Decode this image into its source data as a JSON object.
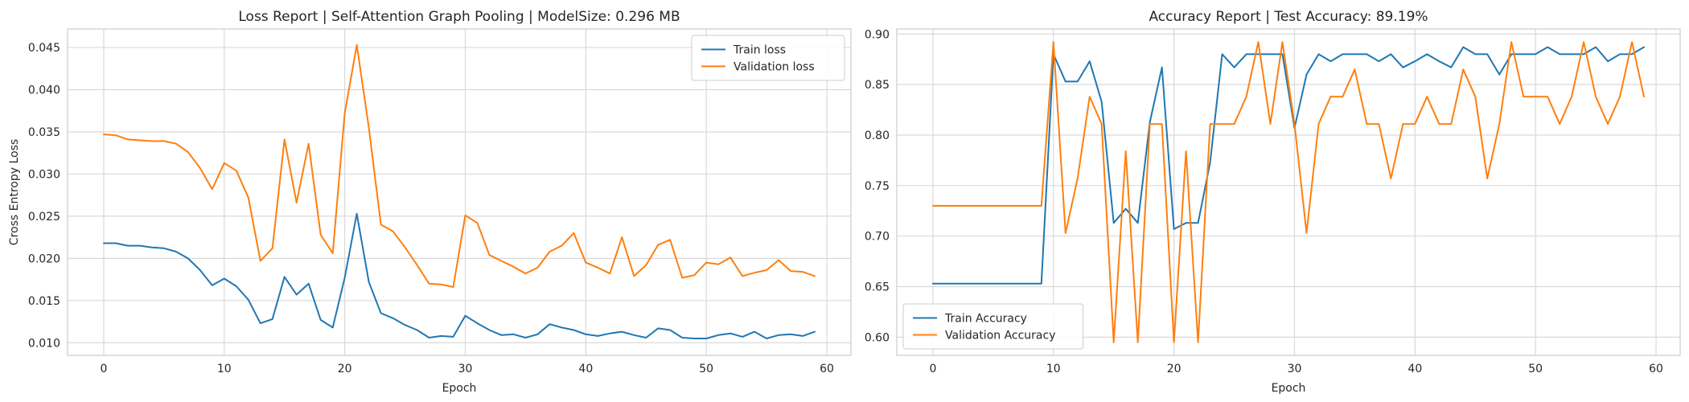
{
  "chart_data": [
    {
      "type": "line",
      "title": "Loss Report | Self-Attention Graph Pooling | ModelSize: 0.296 MB",
      "xlabel": "Epoch",
      "ylabel": "Cross Entropy Loss",
      "xlim": [
        -3,
        62
      ],
      "ylim": [
        0.0085,
        0.0472
      ],
      "xticks": [
        0,
        10,
        20,
        30,
        40,
        50,
        60
      ],
      "xtick_labels": [
        "0",
        "10",
        "20",
        "30",
        "40",
        "50",
        "60"
      ],
      "yticks": [
        0.01,
        0.015,
        0.02,
        0.025,
        0.03,
        0.035,
        0.04,
        0.045
      ],
      "ytick_labels": [
        "0.010",
        "0.015",
        "0.020",
        "0.025",
        "0.030",
        "0.035",
        "0.040",
        "0.045"
      ],
      "grid": true,
      "legend_position": "top-right",
      "x": [
        0,
        1,
        2,
        3,
        4,
        5,
        6,
        7,
        8,
        9,
        10,
        11,
        12,
        13,
        14,
        15,
        16,
        17,
        18,
        19,
        20,
        21,
        22,
        23,
        24,
        25,
        26,
        27,
        28,
        29,
        30,
        31,
        32,
        33,
        34,
        35,
        36,
        37,
        38,
        39,
        40,
        41,
        42,
        43,
        44,
        45,
        46,
        47,
        48,
        49,
        50,
        51,
        52,
        53,
        54,
        55,
        56,
        57,
        58,
        59
      ],
      "series": [
        {
          "name": "Train loss",
          "color": "#1f77b4",
          "values": [
            0.0218,
            0.0218,
            0.0215,
            0.0215,
            0.0213,
            0.0212,
            0.0208,
            0.02,
            0.0186,
            0.0168,
            0.0176,
            0.0167,
            0.0151,
            0.0123,
            0.0128,
            0.0178,
            0.0157,
            0.017,
            0.0127,
            0.0118,
            0.0177,
            0.0253,
            0.0172,
            0.0135,
            0.0129,
            0.0121,
            0.0115,
            0.0106,
            0.0108,
            0.0107,
            0.0132,
            0.0123,
            0.0115,
            0.0109,
            0.011,
            0.0106,
            0.011,
            0.0122,
            0.0118,
            0.0115,
            0.011,
            0.0108,
            0.0111,
            0.0113,
            0.0109,
            0.0106,
            0.0117,
            0.0115,
            0.0106,
            0.0105,
            0.0105,
            0.0109,
            0.0111,
            0.0107,
            0.0113,
            0.0105,
            0.0109,
            0.011,
            0.0108,
            0.0113
          ]
        },
        {
          "name": "Validation loss",
          "color": "#ff7f0e",
          "values": [
            0.0347,
            0.0346,
            0.0341,
            0.034,
            0.0339,
            0.0339,
            0.0336,
            0.0326,
            0.0307,
            0.0282,
            0.0313,
            0.0304,
            0.0272,
            0.0197,
            0.0212,
            0.0341,
            0.0266,
            0.0336,
            0.0228,
            0.0206,
            0.0372,
            0.0453,
            0.0355,
            0.024,
            0.0232,
            0.0213,
            0.0192,
            0.017,
            0.0169,
            0.0166,
            0.0251,
            0.0242,
            0.0204,
            0.0197,
            0.019,
            0.0182,
            0.0189,
            0.0208,
            0.0215,
            0.023,
            0.0195,
            0.0189,
            0.0182,
            0.0225,
            0.0179,
            0.0192,
            0.0216,
            0.0222,
            0.0177,
            0.018,
            0.0195,
            0.0193,
            0.0201,
            0.0179,
            0.0183,
            0.0186,
            0.0198,
            0.0185,
            0.0184,
            0.0179
          ]
        }
      ]
    },
    {
      "type": "line",
      "title": "Accuracy Report | Test Accuracy: 89.19%",
      "xlabel": "Epoch",
      "ylabel": "",
      "xlim": [
        -3,
        62
      ],
      "ylim": [
        0.582,
        0.905
      ],
      "xticks": [
        0,
        10,
        20,
        30,
        40,
        50,
        60
      ],
      "xtick_labels": [
        "0",
        "10",
        "20",
        "30",
        "40",
        "50",
        "60"
      ],
      "yticks": [
        0.6,
        0.65,
        0.7,
        0.75,
        0.8,
        0.85,
        0.9
      ],
      "ytick_labels": [
        "0.60",
        "0.65",
        "0.70",
        "0.75",
        "0.80",
        "0.85",
        "0.90"
      ],
      "grid": true,
      "legend_position": "bottom-left",
      "x": [
        0,
        1,
        2,
        3,
        4,
        5,
        6,
        7,
        8,
        9,
        10,
        11,
        12,
        13,
        14,
        15,
        16,
        17,
        18,
        19,
        20,
        21,
        22,
        23,
        24,
        25,
        26,
        27,
        28,
        29,
        30,
        31,
        32,
        33,
        34,
        35,
        36,
        37,
        38,
        39,
        40,
        41,
        42,
        43,
        44,
        45,
        46,
        47,
        48,
        49,
        50,
        51,
        52,
        53,
        54,
        55,
        56,
        57,
        58,
        59
      ],
      "series": [
        {
          "name": "Train Accuracy",
          "color": "#1f77b4",
          "values": [
            0.653,
            0.653,
            0.653,
            0.653,
            0.653,
            0.653,
            0.653,
            0.653,
            0.653,
            0.653,
            0.88,
            0.853,
            0.853,
            0.873,
            0.833,
            0.713,
            0.727,
            0.713,
            0.813,
            0.867,
            0.707,
            0.713,
            0.713,
            0.773,
            0.88,
            0.867,
            0.88,
            0.88,
            0.88,
            0.88,
            0.807,
            0.86,
            0.88,
            0.873,
            0.88,
            0.88,
            0.88,
            0.873,
            0.88,
            0.867,
            0.873,
            0.88,
            0.873,
            0.867,
            0.887,
            0.88,
            0.88,
            0.86,
            0.88,
            0.88,
            0.88,
            0.887,
            0.88,
            0.88,
            0.88,
            0.887,
            0.873,
            0.88,
            0.88,
            0.887
          ]
        },
        {
          "name": "Validation Accuracy",
          "color": "#ff7f0e",
          "values": [
            0.73,
            0.73,
            0.73,
            0.73,
            0.73,
            0.73,
            0.73,
            0.73,
            0.73,
            0.73,
            0.892,
            0.703,
            0.757,
            0.838,
            0.811,
            0.595,
            0.784,
            0.595,
            0.811,
            0.811,
            0.595,
            0.784,
            0.595,
            0.811,
            0.811,
            0.811,
            0.838,
            0.892,
            0.811,
            0.892,
            0.811,
            0.703,
            0.811,
            0.838,
            0.838,
            0.865,
            0.811,
            0.811,
            0.757,
            0.811,
            0.811,
            0.838,
            0.811,
            0.811,
            0.865,
            0.838,
            0.757,
            0.811,
            0.892,
            0.838,
            0.838,
            0.838,
            0.811,
            0.838,
            0.892,
            0.838,
            0.811,
            0.838,
            0.892,
            0.838
          ]
        }
      ]
    }
  ]
}
